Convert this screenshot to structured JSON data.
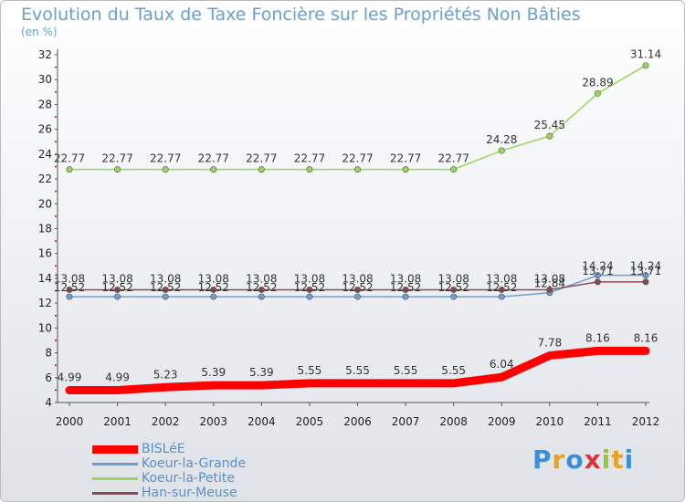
{
  "header": {
    "title": "Evolution du Taux de Taxe Foncière sur les Propriétés Non Bâties",
    "unit": "(en %)"
  },
  "logo": {
    "letters": [
      "P",
      "r",
      "o",
      "x",
      "i",
      "t",
      "i"
    ],
    "colors": [
      "#3a8fd6",
      "#e9a21f",
      "#3a8fd6",
      "#d9343a",
      "#9bc33a",
      "#e9a21f",
      "#3a8fd6"
    ]
  },
  "chart_data": {
    "type": "line",
    "title": "Evolution du Taux de Taxe Foncière sur les Propriétés Non Bâties",
    "ylabel": "(en %)",
    "xlabel": "",
    "x": [
      "2000",
      "2001",
      "2002",
      "2003",
      "2004",
      "2005",
      "2006",
      "2007",
      "2008",
      "2009",
      "2010",
      "2011",
      "2012"
    ],
    "ylim": [
      4,
      32
    ],
    "yticks": [
      4,
      6,
      8,
      10,
      12,
      14,
      16,
      18,
      20,
      22,
      24,
      26,
      28,
      30,
      32
    ],
    "grid": false,
    "legend_position": "bottom-left",
    "series": [
      {
        "name": "BISLéE",
        "color": "#ff0000",
        "values": [
          4.99,
          4.99,
          5.23,
          5.39,
          5.39,
          5.55,
          5.55,
          5.55,
          5.55,
          6.04,
          7.78,
          8.16,
          8.16
        ],
        "labels": [
          "4.99",
          "4.99",
          "5.23",
          "5.39",
          "5.39",
          "5.55",
          "5.55",
          "5.55",
          "5.55",
          "6.04",
          "7.78",
          "8.16",
          "8.16"
        ]
      },
      {
        "name": "Koeur-la-Grande",
        "color": "#6b9fd3",
        "values": [
          12.52,
          12.52,
          12.52,
          12.52,
          12.52,
          12.52,
          12.52,
          12.52,
          12.52,
          12.52,
          12.84,
          14.24,
          14.24
        ],
        "labels": [
          "12.52",
          "12.52",
          "12.52",
          "12.52",
          "12.52",
          "12.52",
          "12.52",
          "12.52",
          "12.52",
          "12.52",
          "12.84",
          "14.24",
          "14.24"
        ]
      },
      {
        "name": "Koeur-la-Petite",
        "color": "#99d65c",
        "values": [
          22.77,
          22.77,
          22.77,
          22.77,
          22.77,
          22.77,
          22.77,
          22.77,
          22.77,
          24.28,
          25.45,
          28.89,
          31.14
        ],
        "labels": [
          "22.77",
          "22.77",
          "22.77",
          "22.77",
          "22.77",
          "22.77",
          "22.77",
          "22.77",
          "22.77",
          "24.28",
          "25.45",
          "28.89",
          "31.14"
        ]
      },
      {
        "name": "Han-sur-Meuse",
        "color": "#8b4a52",
        "values": [
          13.08,
          13.08,
          13.08,
          13.08,
          13.08,
          13.08,
          13.08,
          13.08,
          13.08,
          13.08,
          13.08,
          13.71,
          13.71
        ],
        "labels": [
          "13.08",
          "13.08",
          "13.08",
          "13.08",
          "13.08",
          "13.08",
          "13.08",
          "13.08",
          "13.08",
          "13.08",
          "13.08",
          "13.71",
          "13.71"
        ]
      }
    ]
  }
}
